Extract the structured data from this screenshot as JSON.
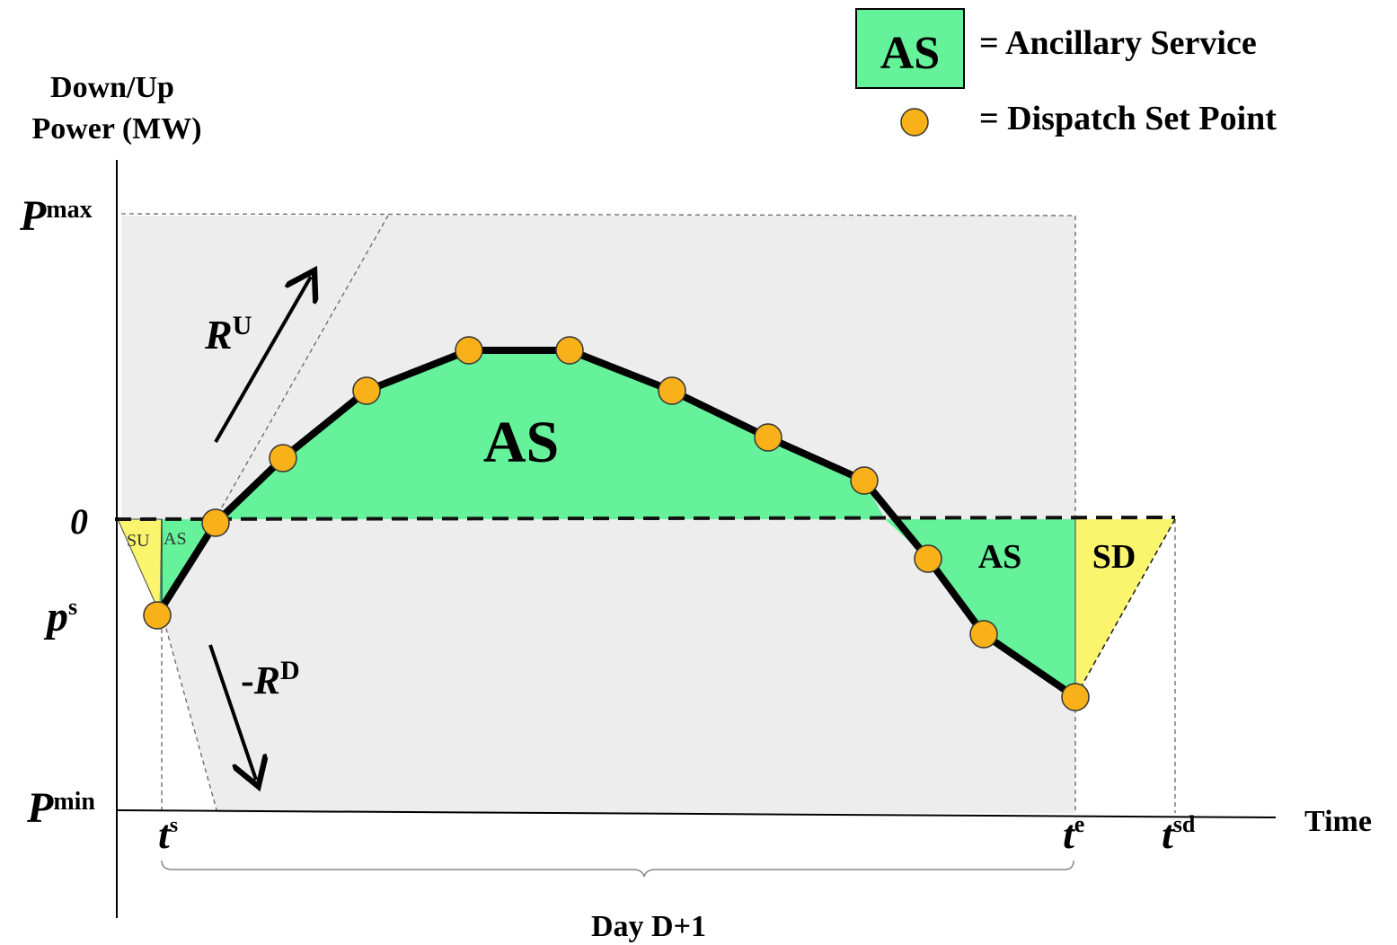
{
  "axis": {
    "y_label_line1": "Down/Up",
    "y_label_line2": "Power (MW)",
    "x_label": "Time",
    "period_label": "Day D+1"
  },
  "y_ticks": {
    "pmax_base": "P",
    "pmax_sup": "max",
    "zero": "0",
    "ps_base": "p",
    "ps_sup": "s",
    "pmin_base": "P",
    "pmin_sup": "min"
  },
  "x_ticks": {
    "ts_base": "t",
    "ts_sup": "s",
    "te_base": "t",
    "te_sup": "e",
    "tsd_base": "t",
    "tsd_sup": "sd"
  },
  "ramp": {
    "up_base": "R",
    "up_sup": "U",
    "down_prefix": "-",
    "down_base": "R",
    "down_sup": "D"
  },
  "regions": {
    "main_as": "AS",
    "small_su": "SU",
    "small_as": "AS",
    "right_as": "AS",
    "sd": "SD"
  },
  "legend": {
    "as_box_label": "AS",
    "as_text": "= Ancillary Service",
    "dot_text": "= Dispatch Set Point"
  },
  "colors": {
    "as_fill": "#66f29a",
    "su_sd_fill": "#fbf56e",
    "feasible_region": "#ededed",
    "set_point": "#f9b11a",
    "curve": "#000000"
  }
}
